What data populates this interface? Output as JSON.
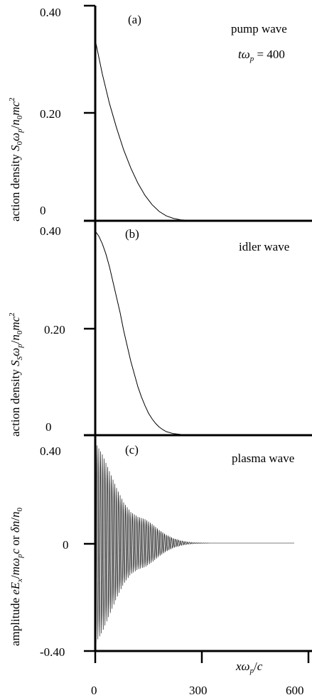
{
  "chart_data": [
    {
      "type": "line",
      "panel_label": "(a)",
      "annotation": "pump wave",
      "annotation2": "tω_p = 400",
      "ylabel": "action density S_0ω_p/n_0mc^2",
      "yticks": [
        "0",
        "0.20",
        "0.40"
      ],
      "ylim": [
        0,
        0.44
      ],
      "xlim": [
        0,
        600
      ],
      "x": [
        0,
        20,
        40,
        60,
        80,
        100,
        120,
        140,
        160,
        180,
        200,
        220,
        240,
        260,
        280,
        300
      ],
      "y": [
        0.37,
        0.3,
        0.24,
        0.19,
        0.145,
        0.108,
        0.077,
        0.052,
        0.033,
        0.019,
        0.01,
        0.005,
        0.002,
        0.001,
        0.0005,
        0
      ]
    },
    {
      "type": "line",
      "panel_label": "(b)",
      "annotation": "idler wave",
      "ylabel": "action density S_Sω_p/n_0mc^2",
      "yticks": [
        "0",
        "0.20",
        "0.40"
      ],
      "ylim": [
        0,
        0.42
      ],
      "xlim": [
        0,
        600
      ],
      "x": [
        0,
        10,
        20,
        30,
        40,
        50,
        60,
        70,
        80,
        90,
        100,
        110,
        120,
        130,
        140,
        150,
        160,
        170,
        180,
        190,
        200,
        220,
        240,
        260,
        280,
        300
      ],
      "y": [
        0.4,
        0.39,
        0.375,
        0.355,
        0.33,
        0.3,
        0.27,
        0.24,
        0.205,
        0.175,
        0.145,
        0.12,
        0.095,
        0.075,
        0.058,
        0.043,
        0.032,
        0.023,
        0.016,
        0.011,
        0.007,
        0.003,
        0.0015,
        0.0005,
        0.0002,
        0
      ]
    },
    {
      "type": "line",
      "panel_label": "(c)",
      "annotation": "plasma wave",
      "ylabel": "amplitude eE_x/mω_pc or δn/n_0",
      "yticks": [
        "-0.40",
        "0",
        "0.40"
      ],
      "ylim": [
        -0.45,
        0.45
      ],
      "xlim": [
        0,
        600
      ],
      "xlabel": "xω_p/c",
      "xticks": [
        "0",
        "300",
        "600"
      ],
      "envelope_x": [
        0,
        20,
        40,
        60,
        80,
        100,
        120,
        140,
        160,
        180,
        200,
        220,
        240,
        260,
        280,
        300,
        320,
        400,
        500,
        560
      ],
      "envelope_y": [
        0.42,
        0.37,
        0.3,
        0.23,
        0.17,
        0.13,
        0.11,
        0.1,
        0.08,
        0.055,
        0.035,
        0.02,
        0.01,
        0.005,
        0.002,
        0.001,
        0,
        0,
        0,
        0
      ]
    }
  ]
}
